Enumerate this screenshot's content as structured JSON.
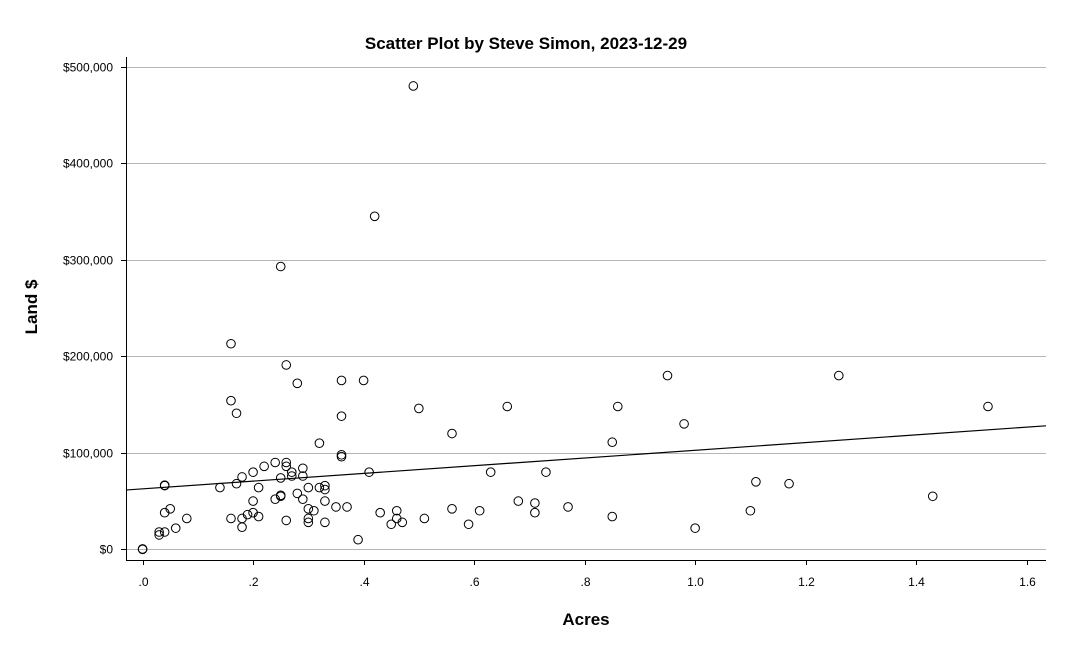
{
  "chart_data": {
    "type": "scatter",
    "title": "Scatter Plot by Steve Simon, 2023-12-29",
    "xlabel": "Acres",
    "ylabel": "Land $",
    "xlim": [
      -0.03,
      1.635
    ],
    "ylim": [
      -11000,
      510000
    ],
    "x_ticks": [
      0,
      0.2,
      0.4,
      0.6,
      0.8,
      1.0,
      1.2,
      1.4,
      1.6
    ],
    "x_tick_labels": [
      ".0",
      ".2",
      ".4",
      ".6",
      ".8",
      "1.0",
      "1.2",
      "1.4",
      "1.6"
    ],
    "y_ticks": [
      0,
      100000,
      200000,
      300000,
      400000,
      500000
    ],
    "y_tick_labels": [
      "$0",
      "$100,000",
      "$200,000",
      "$300,000",
      "$400,000",
      "$500,000"
    ],
    "grid": true,
    "fit_line": {
      "x": [
        -0.03,
        1.635
      ],
      "y": [
        61500,
        128000
      ]
    },
    "points": [
      [
        0.0,
        0
      ],
      [
        0.0,
        500
      ],
      [
        0.03,
        15000
      ],
      [
        0.03,
        18000
      ],
      [
        0.04,
        18000
      ],
      [
        0.04,
        38000
      ],
      [
        0.04,
        66000
      ],
      [
        0.04,
        66500
      ],
      [
        0.05,
        42000
      ],
      [
        0.06,
        22000
      ],
      [
        0.08,
        32000
      ],
      [
        0.14,
        64000
      ],
      [
        0.16,
        213000
      ],
      [
        0.16,
        154000
      ],
      [
        0.16,
        32000
      ],
      [
        0.17,
        141000
      ],
      [
        0.17,
        68000
      ],
      [
        0.18,
        75000
      ],
      [
        0.18,
        32000
      ],
      [
        0.18,
        23000
      ],
      [
        0.19,
        36000
      ],
      [
        0.2,
        50000
      ],
      [
        0.2,
        80000
      ],
      [
        0.2,
        38000
      ],
      [
        0.21,
        34000
      ],
      [
        0.21,
        64000
      ],
      [
        0.22,
        86000
      ],
      [
        0.24,
        90000
      ],
      [
        0.24,
        52000
      ],
      [
        0.25,
        293000
      ],
      [
        0.25,
        74000
      ],
      [
        0.25,
        55000
      ],
      [
        0.25,
        56000
      ],
      [
        0.26,
        191000
      ],
      [
        0.26,
        90000
      ],
      [
        0.26,
        86000
      ],
      [
        0.26,
        30000
      ],
      [
        0.27,
        76000
      ],
      [
        0.27,
        80000
      ],
      [
        0.28,
        172000
      ],
      [
        0.28,
        58000
      ],
      [
        0.29,
        84000
      ],
      [
        0.29,
        76000
      ],
      [
        0.29,
        52000
      ],
      [
        0.3,
        64000
      ],
      [
        0.3,
        42000
      ],
      [
        0.3,
        32000
      ],
      [
        0.3,
        28000
      ],
      [
        0.31,
        40000
      ],
      [
        0.32,
        110000
      ],
      [
        0.32,
        64000
      ],
      [
        0.33,
        66000
      ],
      [
        0.33,
        62000
      ],
      [
        0.33,
        50000
      ],
      [
        0.33,
        28000
      ],
      [
        0.35,
        44000
      ],
      [
        0.36,
        175000
      ],
      [
        0.36,
        138000
      ],
      [
        0.36,
        98000
      ],
      [
        0.36,
        96000
      ],
      [
        0.37,
        44000
      ],
      [
        0.39,
        10000
      ],
      [
        0.4,
        175000
      ],
      [
        0.41,
        80000
      ],
      [
        0.42,
        345000
      ],
      [
        0.43,
        38000
      ],
      [
        0.45,
        26000
      ],
      [
        0.46,
        32000
      ],
      [
        0.46,
        40000
      ],
      [
        0.47,
        28000
      ],
      [
        0.49,
        480000
      ],
      [
        0.5,
        146000
      ],
      [
        0.51,
        32000
      ],
      [
        0.56,
        120000
      ],
      [
        0.56,
        42000
      ],
      [
        0.59,
        26000
      ],
      [
        0.61,
        40000
      ],
      [
        0.63,
        80000
      ],
      [
        0.66,
        148000
      ],
      [
        0.68,
        50000
      ],
      [
        0.71,
        48000
      ],
      [
        0.71,
        38000
      ],
      [
        0.73,
        80000
      ],
      [
        0.77,
        44000
      ],
      [
        0.85,
        111000
      ],
      [
        0.85,
        34000
      ],
      [
        0.86,
        148000
      ],
      [
        0.95,
        180000
      ],
      [
        0.98,
        130000
      ],
      [
        1.0,
        22000
      ],
      [
        1.1,
        40000
      ],
      [
        1.11,
        70000
      ],
      [
        1.17,
        68000
      ],
      [
        1.26,
        180000
      ],
      [
        1.43,
        55000
      ],
      [
        1.53,
        148000
      ]
    ]
  }
}
